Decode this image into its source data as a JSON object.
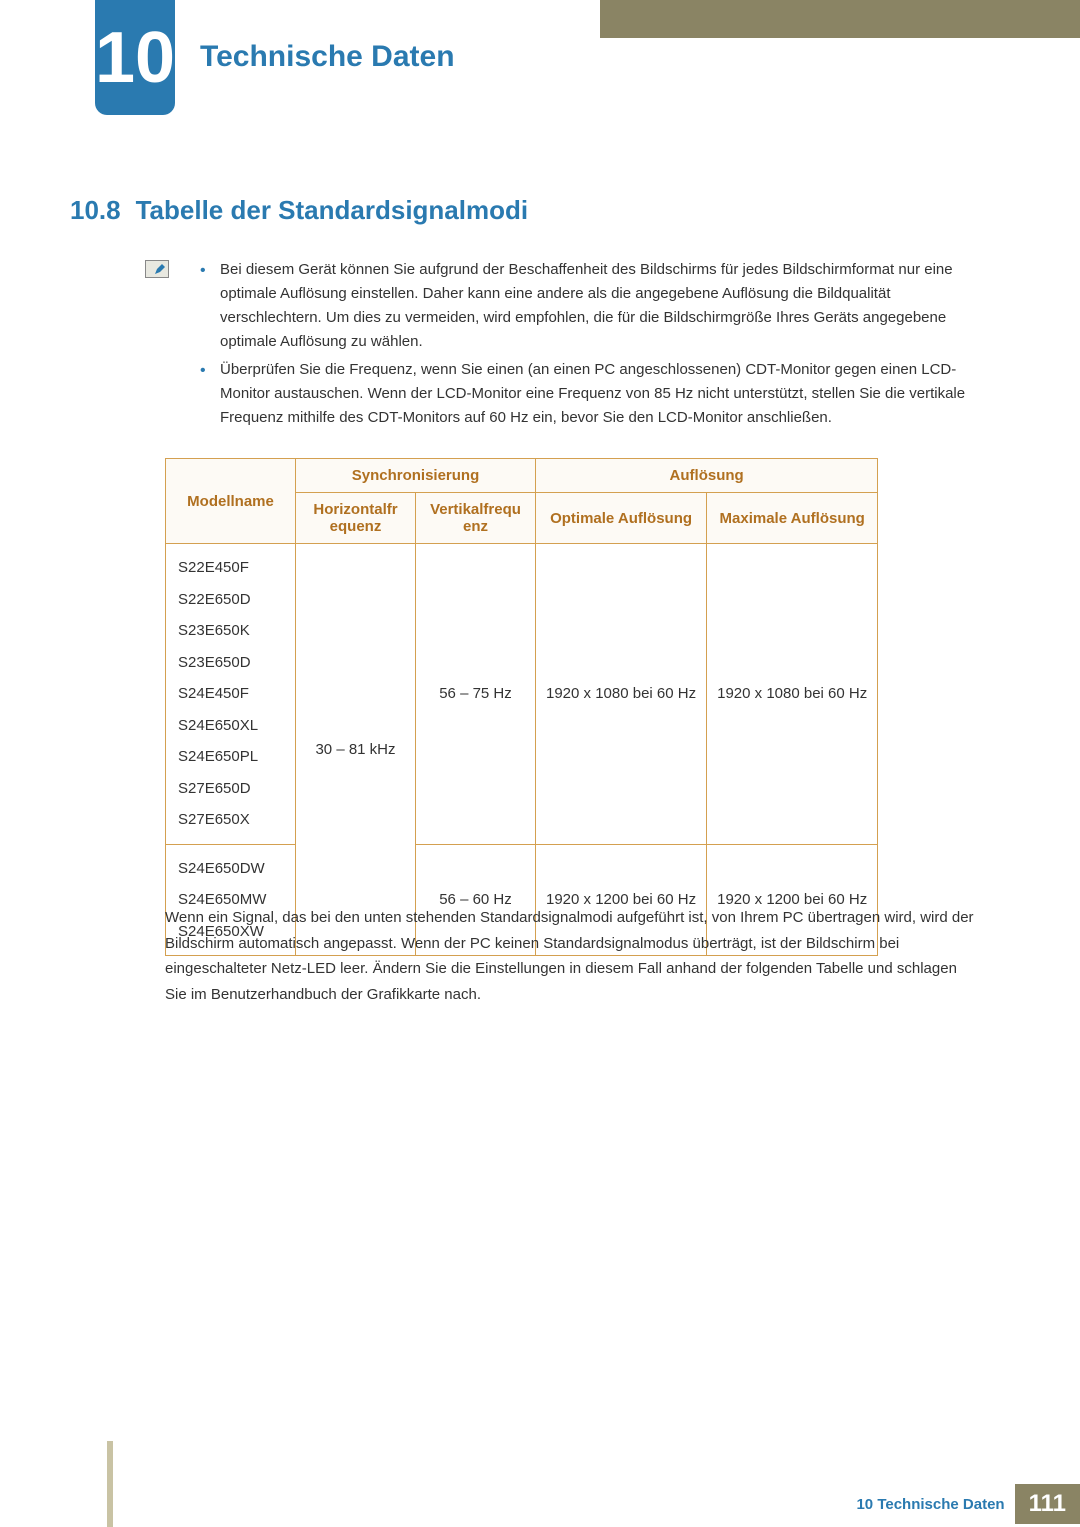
{
  "colors": {
    "accent": "#2a7ab0",
    "header_bar": "#8a8464",
    "table_border": "#d4a050",
    "table_header_text": "#b07020",
    "table_header_bg": "#fdfaf5",
    "body_text": "#333333",
    "side_stripe": "#c9c3a4"
  },
  "typography": {
    "chapter_num_size": 72,
    "chapter_title_size": 30,
    "section_size": 26,
    "body_size": 15
  },
  "chapter": {
    "number": "10",
    "title": "Technische Daten"
  },
  "section": {
    "number": "10.8",
    "title": "Tabelle der Standardsignalmodi"
  },
  "notes": [
    "Bei diesem Gerät können Sie aufgrund der Beschaffenheit des Bildschirms für jedes Bildschirmformat nur eine optimale Auflösung einstellen. Daher kann eine andere als die angegebene Auflösung die Bildqualität verschlechtern. Um dies zu vermeiden, wird empfohlen, die für die Bildschirmgröße Ihres Geräts angegebene optimale Auflösung zu wählen.",
    "Überprüfen Sie die Frequenz, wenn Sie einen (an einen PC angeschlossenen) CDT-Monitor gegen einen LCD-Monitor austauschen. Wenn der LCD-Monitor eine Frequenz von 85 Hz nicht unterstützt, stellen Sie die vertikale Frequenz mithilfe des CDT-Monitors auf 60 Hz ein, bevor Sie den LCD-Monitor anschließen."
  ],
  "table": {
    "type": "table",
    "columns": {
      "model": "Modellname",
      "sync_group": "Synchronisierung",
      "hfreq": "Horizontalfrequenz",
      "vfreq": "Vertikalfrequenz",
      "res_group": "Auflösung",
      "opt_res": "Optimale Auflösung",
      "max_res": "Maximale Auflösung"
    },
    "shared_hfreq": "30 – 81 kHz",
    "group1": {
      "models": [
        "S22E450F",
        "S22E650D",
        "S23E650K",
        "S23E650D",
        "S24E450F",
        "S24E650XL",
        "S24E650PL",
        "S27E650D",
        "S27E650X"
      ],
      "vfreq": "56 – 75 Hz",
      "opt_res": "1920 x 1080 bei 60 Hz",
      "max_res": "1920 x 1080 bei 60 Hz"
    },
    "group2": {
      "models": [
        "S24E650DW",
        "S24E650MW",
        "S24E650XW"
      ],
      "vfreq": "56 – 60 Hz",
      "opt_res": "1920 x 1200 bei 60 Hz",
      "max_res": "1920 x 1200 bei 60 Hz"
    }
  },
  "post_text": "Wenn ein Signal, das bei den unten stehenden Standardsignalmodi aufgeführt ist, von Ihrem PC übertragen wird, wird der Bildschirm automatisch angepasst. Wenn der PC keinen Standardsignalmodus überträgt, ist der Bildschirm bei eingeschalteter Netz-LED leer. Ändern Sie die Einstellungen in diesem Fall anhand der folgenden Tabelle und schlagen Sie im Benutzerhandbuch der Grafikkarte nach.",
  "footer": {
    "text": "10 Technische Daten",
    "page": "111"
  }
}
